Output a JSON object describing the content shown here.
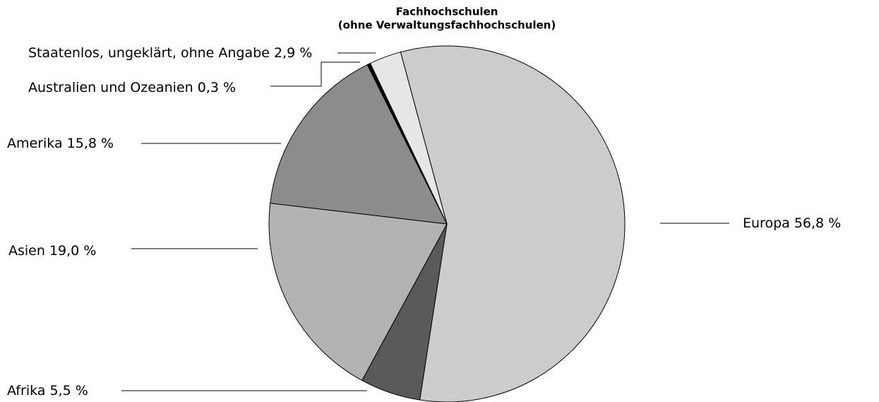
{
  "chart_data": {
    "type": "pie",
    "title": "Fachhochschulen",
    "subtitle": "(ohne Verwaltungsfachhochschulen)",
    "categories": [
      "Europa",
      "Afrika",
      "Asien",
      "Amerika",
      "Australien und Ozeanien",
      "Staatenlos, ungeklärt, ohne Angabe"
    ],
    "values": [
      56.8,
      5.5,
      19.0,
      15.8,
      0.3,
      2.9
    ],
    "value_labels": [
      "56,8 %",
      "5,5 %",
      "19,0 %",
      "15,8 %",
      "0,3 %",
      "2,9 %"
    ],
    "colors": [
      "#cccccc",
      "#5a5a5a",
      "#b3b3b3",
      "#8c8c8c",
      "#000000",
      "#e6e6e6"
    ]
  }
}
